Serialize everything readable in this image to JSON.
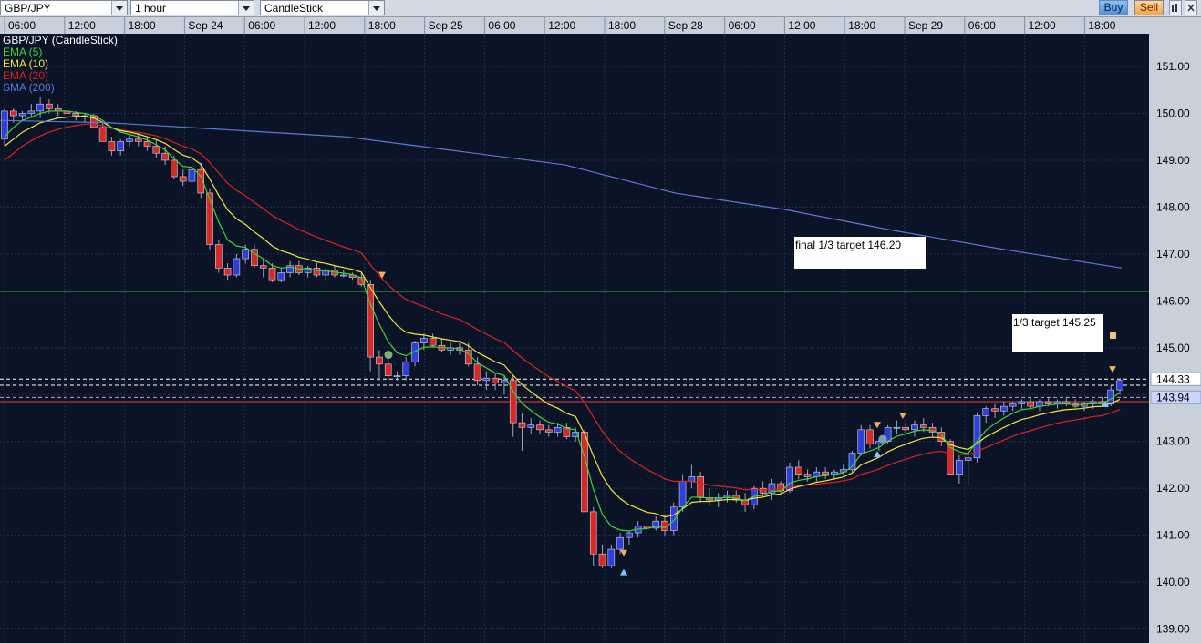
{
  "toolbar": {
    "symbol": "GBP/JPY",
    "timeframe": "1 hour",
    "chart_type": "CandleStick",
    "buy_label": "Buy",
    "sell_label": "Sell",
    "icons": [
      "bar-chart-icon",
      "close-icon"
    ]
  },
  "legend": {
    "main": "GBP/JPY (CandleStick)",
    "items": [
      {
        "label": "EMA (5)",
        "color": "#3cd43c"
      },
      {
        "label": "EMA (10)",
        "color": "#f2e63c"
      },
      {
        "label": "EMA (20)",
        "color": "#e02020"
      },
      {
        "label": "SMA (200)",
        "color": "#5a78d8"
      }
    ]
  },
  "annotations": {
    "final_target": "final 1/3 target 146.20",
    "first_target": "1/3 target 145.25"
  },
  "price_tags": {
    "upper": "144.33",
    "lower": "143.94"
  },
  "chart_data": {
    "type": "candlestick",
    "x_ticks": [
      "06:00",
      "12:00",
      "18:00",
      "Sep 24",
      "06:00",
      "12:00",
      "18:00",
      "Sep 25",
      "06:00",
      "12:00",
      "18:00",
      "Sep 28",
      "06:00",
      "12:00",
      "18:00",
      "Sep 29",
      "06:00",
      "12:00",
      "18:00"
    ],
    "y_ticks": [
      "151.00",
      "150.00",
      "149.00",
      "148.00",
      "147.00",
      "146.00",
      "145.00",
      "144.00",
      "143.00",
      "142.00",
      "141.00",
      "140.00",
      "139.00"
    ],
    "ylim": [
      138.7,
      151.7
    ],
    "horizontal_lines": [
      {
        "value": 146.2,
        "color": "#3cb43c",
        "style": "solid"
      },
      {
        "value": 144.33,
        "color": "#ffffff",
        "style": "dashed"
      },
      {
        "value": 144.2,
        "color": "#ffffff",
        "style": "dashed"
      },
      {
        "value": 143.94,
        "color": "#c9a0dc",
        "style": "dashed"
      },
      {
        "value": 143.85,
        "color": "#e04040",
        "style": "solid"
      }
    ],
    "candles": [
      [
        149.45,
        150.1,
        149.3,
        150.05
      ],
      [
        150.05,
        150.1,
        149.8,
        149.95
      ],
      [
        149.95,
        150.05,
        149.85,
        150.0
      ],
      [
        150.0,
        150.2,
        149.9,
        150.05
      ],
      [
        150.05,
        150.35,
        149.9,
        150.2
      ],
      [
        150.2,
        150.3,
        150.0,
        150.1
      ],
      [
        150.1,
        150.2,
        149.95,
        150.05
      ],
      [
        150.05,
        150.1,
        149.9,
        150.0
      ],
      [
        150.0,
        150.05,
        149.85,
        149.95
      ],
      [
        149.95,
        150.0,
        149.8,
        149.95
      ],
      [
        149.95,
        150.0,
        149.7,
        149.7
      ],
      [
        149.7,
        149.8,
        149.4,
        149.4
      ],
      [
        149.4,
        149.5,
        149.1,
        149.2
      ],
      [
        149.2,
        149.45,
        149.1,
        149.4
      ],
      [
        149.4,
        149.55,
        149.3,
        149.45
      ],
      [
        149.45,
        149.55,
        149.3,
        149.4
      ],
      [
        149.4,
        149.5,
        149.2,
        149.3
      ],
      [
        149.3,
        149.45,
        149.05,
        149.15
      ],
      [
        149.15,
        149.3,
        148.9,
        149.0
      ],
      [
        149.0,
        149.1,
        148.6,
        148.65
      ],
      [
        148.65,
        148.8,
        148.45,
        148.55
      ],
      [
        148.55,
        148.9,
        148.5,
        148.8
      ],
      [
        148.8,
        148.95,
        148.2,
        148.3
      ],
      [
        148.3,
        148.4,
        147.1,
        147.2
      ],
      [
        147.2,
        147.3,
        146.6,
        146.7
      ],
      [
        146.7,
        146.8,
        146.45,
        146.55
      ],
      [
        146.55,
        147.0,
        146.5,
        146.9
      ],
      [
        146.9,
        147.2,
        146.8,
        147.1
      ],
      [
        147.1,
        147.2,
        146.7,
        146.75
      ],
      [
        146.75,
        146.9,
        146.5,
        146.7
      ],
      [
        146.7,
        146.8,
        146.4,
        146.45
      ],
      [
        146.45,
        146.7,
        146.4,
        146.6
      ],
      [
        146.6,
        146.85,
        146.5,
        146.75
      ],
      [
        146.75,
        146.85,
        146.55,
        146.6
      ],
      [
        146.6,
        146.75,
        146.5,
        146.7
      ],
      [
        146.7,
        146.8,
        146.5,
        146.55
      ],
      [
        146.55,
        146.7,
        146.45,
        146.65
      ],
      [
        146.65,
        146.75,
        146.5,
        146.55
      ],
      [
        146.55,
        146.65,
        146.5,
        146.55
      ],
      [
        146.55,
        146.6,
        146.45,
        146.5
      ],
      [
        146.5,
        146.6,
        146.3,
        146.35
      ],
      [
        146.35,
        146.45,
        144.5,
        144.8
      ],
      [
        144.8,
        144.95,
        144.3,
        144.65
      ],
      [
        144.65,
        144.75,
        144.3,
        144.4
      ],
      [
        144.4,
        144.5,
        144.3,
        144.4
      ],
      [
        144.4,
        144.8,
        144.3,
        144.7
      ],
      [
        144.7,
        145.15,
        144.6,
        145.1
      ],
      [
        145.1,
        145.3,
        144.95,
        145.2
      ],
      [
        145.2,
        145.3,
        145.0,
        145.05
      ],
      [
        145.05,
        145.2,
        144.9,
        144.95
      ],
      [
        144.95,
        145.1,
        144.85,
        145.0
      ],
      [
        145.0,
        145.15,
        144.85,
        144.95
      ],
      [
        144.95,
        145.1,
        144.6,
        144.65
      ],
      [
        144.65,
        144.8,
        144.2,
        144.3
      ],
      [
        144.3,
        144.5,
        144.1,
        144.35
      ],
      [
        144.35,
        144.45,
        144.1,
        144.25
      ],
      [
        144.25,
        144.4,
        144.0,
        144.3
      ],
      [
        144.3,
        144.4,
        143.1,
        143.4
      ],
      [
        143.4,
        143.6,
        142.8,
        143.3
      ],
      [
        143.3,
        143.5,
        143.15,
        143.35
      ],
      [
        143.35,
        143.45,
        143.15,
        143.25
      ],
      [
        143.25,
        143.35,
        143.1,
        143.2
      ],
      [
        143.2,
        143.4,
        143.1,
        143.3
      ],
      [
        143.3,
        143.4,
        143.05,
        143.1
      ],
      [
        143.1,
        143.3,
        143.0,
        143.2
      ],
      [
        143.2,
        143.25,
        141.5,
        141.5
      ],
      [
        141.5,
        141.6,
        140.35,
        140.6
      ],
      [
        140.6,
        140.8,
        140.3,
        140.35
      ],
      [
        140.35,
        140.8,
        140.3,
        140.7
      ],
      [
        140.7,
        141.05,
        140.6,
        140.95
      ],
      [
        140.95,
        141.1,
        140.8,
        141.05
      ],
      [
        141.05,
        141.3,
        140.95,
        141.2
      ],
      [
        141.2,
        141.35,
        141.0,
        141.15
      ],
      [
        141.15,
        141.4,
        141.1,
        141.3
      ],
      [
        141.3,
        141.45,
        141.0,
        141.1
      ],
      [
        141.1,
        141.7,
        141.0,
        141.6
      ],
      [
        141.6,
        142.3,
        141.5,
        142.15
      ],
      [
        142.15,
        142.5,
        142.0,
        142.25
      ],
      [
        142.25,
        142.35,
        141.7,
        141.8
      ],
      [
        141.8,
        142.0,
        141.65,
        141.75
      ],
      [
        141.75,
        141.9,
        141.6,
        141.8
      ],
      [
        141.8,
        141.95,
        141.7,
        141.85
      ],
      [
        141.85,
        141.95,
        141.7,
        141.75
      ],
      [
        141.75,
        141.9,
        141.5,
        141.65
      ],
      [
        141.65,
        142.05,
        141.55,
        142.0
      ],
      [
        142.0,
        142.15,
        141.8,
        141.9
      ],
      [
        141.9,
        142.2,
        141.75,
        142.1
      ],
      [
        142.1,
        142.15,
        141.85,
        141.95
      ],
      [
        141.95,
        142.55,
        141.9,
        142.45
      ],
      [
        142.45,
        142.6,
        142.2,
        142.3
      ],
      [
        142.3,
        142.4,
        142.15,
        142.25
      ],
      [
        142.25,
        142.45,
        142.15,
        142.35
      ],
      [
        142.35,
        142.45,
        142.2,
        142.3
      ],
      [
        142.3,
        142.4,
        142.2,
        142.35
      ],
      [
        142.35,
        142.5,
        142.3,
        142.4
      ],
      [
        142.4,
        142.8,
        142.35,
        142.75
      ],
      [
        142.75,
        143.35,
        142.7,
        143.25
      ],
      [
        143.25,
        143.35,
        142.85,
        142.95
      ],
      [
        142.95,
        143.05,
        142.8,
        143.0
      ],
      [
        143.0,
        143.35,
        142.95,
        143.3
      ],
      [
        143.3,
        143.45,
        143.15,
        143.3
      ],
      [
        143.3,
        143.4,
        143.15,
        143.25
      ],
      [
        143.25,
        143.45,
        143.1,
        143.35
      ],
      [
        143.35,
        143.5,
        143.2,
        143.3
      ],
      [
        143.3,
        143.4,
        143.1,
        143.2
      ],
      [
        143.2,
        143.3,
        142.9,
        143.0
      ],
      [
        143.0,
        143.05,
        142.3,
        142.3
      ],
      [
        142.3,
        142.7,
        142.1,
        142.6
      ],
      [
        142.6,
        142.8,
        142.05,
        142.65
      ],
      [
        142.65,
        143.6,
        142.55,
        143.55
      ],
      [
        143.55,
        143.75,
        143.4,
        143.7
      ],
      [
        143.7,
        143.8,
        143.5,
        143.65
      ],
      [
        143.65,
        143.85,
        143.55,
        143.75
      ],
      [
        143.75,
        143.85,
        143.65,
        143.8
      ],
      [
        143.8,
        143.9,
        143.7,
        143.85
      ],
      [
        143.85,
        143.95,
        143.7,
        143.75
      ],
      [
        143.75,
        143.9,
        143.65,
        143.85
      ],
      [
        143.85,
        143.95,
        143.75,
        143.8
      ],
      [
        143.8,
        143.9,
        143.7,
        143.85
      ],
      [
        143.85,
        143.95,
        143.75,
        143.8
      ],
      [
        143.8,
        143.9,
        143.7,
        143.75
      ],
      [
        143.75,
        143.85,
        143.65,
        143.8
      ],
      [
        143.8,
        143.9,
        143.7,
        143.85
      ],
      [
        143.85,
        143.95,
        143.75,
        143.8
      ],
      [
        143.8,
        144.2,
        143.75,
        144.1
      ],
      [
        144.1,
        144.35,
        144.0,
        144.3
      ]
    ],
    "ema5": [
      149.5,
      149.7,
      149.85,
      149.92,
      150.0,
      150.05,
      150.05,
      150.05,
      150.02,
      150.0,
      149.95,
      149.85,
      149.7,
      149.6,
      149.55,
      149.5,
      149.43,
      149.33,
      149.22,
      149.03,
      148.87,
      148.85,
      148.66,
      148.17,
      147.68,
      147.3,
      147.17,
      147.14,
      147.01,
      146.9,
      146.75,
      146.7,
      146.72,
      146.68,
      146.69,
      146.64,
      146.64,
      146.61,
      146.59,
      146.56,
      146.49,
      145.93,
      145.5,
      145.13,
      144.89,
      144.83,
      144.92,
      145.01,
      145.02,
      145.0,
      145.0,
      144.98,
      144.87,
      144.68,
      144.57,
      144.46,
      144.41,
      144.07,
      143.81,
      143.66,
      143.52,
      143.41,
      143.37,
      143.28,
      143.25,
      142.67,
      141.98,
      141.44,
      141.19,
      141.11,
      141.09,
      141.13,
      141.14,
      141.19,
      141.16,
      141.31,
      141.59,
      141.81,
      141.81,
      141.79,
      141.79,
      141.81,
      141.79,
      141.74,
      141.83,
      141.85,
      141.94,
      141.94,
      142.11,
      142.17,
      142.2,
      142.25,
      142.27,
      142.3,
      142.33,
      142.47,
      142.73,
      142.8,
      142.87,
      143.01,
      143.11,
      143.16,
      143.22,
      143.25,
      143.23,
      143.15,
      142.87,
      142.78,
      142.74,
      143.01,
      143.24,
      143.38,
      143.5,
      143.6,
      143.68,
      143.7,
      143.75,
      143.77,
      143.8,
      143.8,
      143.78,
      143.79,
      143.81,
      143.81,
      143.91,
      144.04
    ],
    "ema10": [
      149.3,
      149.45,
      149.6,
      149.7,
      149.8,
      149.85,
      149.9,
      149.92,
      149.93,
      149.94,
      149.9,
      149.81,
      149.7,
      149.63,
      149.6,
      149.56,
      149.5,
      149.44,
      149.36,
      149.23,
      149.11,
      149.05,
      148.91,
      148.6,
      148.25,
      147.94,
      147.75,
      147.63,
      147.47,
      147.33,
      147.17,
      147.07,
      147.01,
      146.93,
      146.89,
      146.83,
      146.8,
      146.75,
      146.71,
      146.67,
      146.61,
      146.28,
      145.98,
      145.7,
      145.47,
      145.33,
      145.29,
      145.27,
      145.23,
      145.19,
      145.16,
      145.13,
      145.04,
      144.9,
      144.8,
      144.7,
      144.63,
      144.41,
      144.21,
      144.06,
      143.92,
      143.79,
      143.71,
      143.6,
      143.53,
      143.16,
      142.69,
      142.26,
      141.97,
      141.78,
      141.65,
      141.57,
      141.49,
      141.46,
      141.39,
      141.43,
      141.56,
      141.7,
      141.72,
      141.72,
      141.74,
      141.76,
      141.76,
      141.74,
      141.79,
      141.81,
      141.86,
      141.88,
      141.98,
      142.04,
      142.08,
      142.13,
      142.16,
      142.2,
      142.24,
      142.33,
      142.5,
      142.58,
      142.66,
      142.78,
      142.87,
      142.94,
      143.01,
      143.07,
      143.09,
      143.08,
      142.93,
      142.87,
      142.83,
      142.96,
      143.1,
      143.2,
      143.3,
      143.39,
      143.47,
      143.51,
      143.57,
      143.61,
      143.65,
      143.68,
      143.69,
      143.71,
      143.74,
      143.75,
      143.81,
      143.9
    ],
    "ema20": [
      149.0,
      149.15,
      149.3,
      149.42,
      149.52,
      149.6,
      149.66,
      149.71,
      149.74,
      149.77,
      149.77,
      149.74,
      149.68,
      149.65,
      149.62,
      149.6,
      149.56,
      149.52,
      149.46,
      149.38,
      149.3,
      149.24,
      149.14,
      148.95,
      148.73,
      148.51,
      148.36,
      148.24,
      148.1,
      147.97,
      147.82,
      147.71,
      147.62,
      147.52,
      147.44,
      147.36,
      147.29,
      147.22,
      147.15,
      147.09,
      147.02,
      146.77,
      146.54,
      146.34,
      146.17,
      146.03,
      145.95,
      145.88,
      145.8,
      145.72,
      145.66,
      145.6,
      145.5,
      145.39,
      145.29,
      145.19,
      145.11,
      144.94,
      144.78,
      144.64,
      144.51,
      144.38,
      144.28,
      144.17,
      144.08,
      143.83,
      143.52,
      143.22,
      142.98,
      142.79,
      142.64,
      142.52,
      142.4,
      142.31,
      142.2,
      142.15,
      142.15,
      142.15,
      142.11,
      142.07,
      142.05,
      142.03,
      142.01,
      141.97,
      141.98,
      141.97,
      141.98,
      141.98,
      142.03,
      142.05,
      142.07,
      142.09,
      142.11,
      142.13,
      142.16,
      142.2,
      142.3,
      142.35,
      142.41,
      142.49,
      142.56,
      142.62,
      142.68,
      142.73,
      142.77,
      142.79,
      142.74,
      142.73,
      142.71,
      142.79,
      142.87,
      142.95,
      143.03,
      143.11,
      143.18,
      143.23,
      143.29,
      143.34,
      143.39,
      143.43,
      143.46,
      143.49,
      143.53,
      143.55,
      143.61,
      143.68
    ],
    "sma200_points": [
      [
        0,
        149.85
      ],
      [
        120,
        149.8
      ],
      [
        250,
        149.65
      ],
      [
        380,
        149.5
      ],
      [
        500,
        149.2
      ],
      [
        620,
        148.9
      ],
      [
        740,
        148.3
      ],
      [
        860,
        147.95
      ],
      [
        980,
        147.5
      ],
      [
        1100,
        147.1
      ],
      [
        1230,
        146.7
      ]
    ]
  }
}
